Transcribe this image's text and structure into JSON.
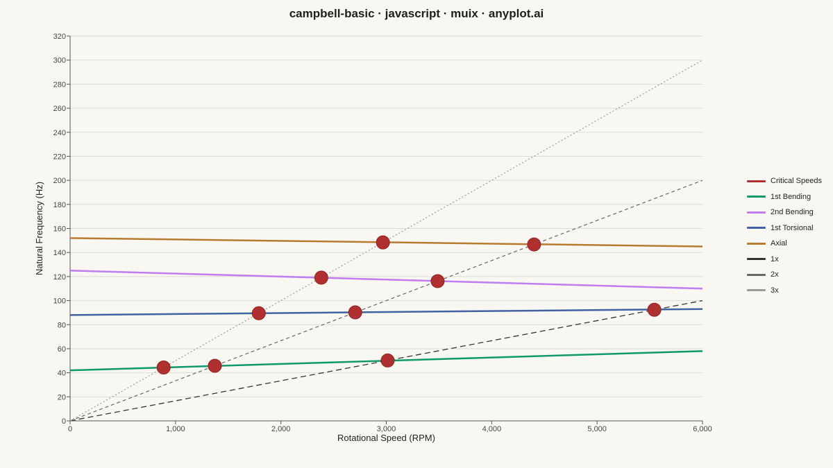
{
  "title": "campbell-basic · javascript · muix · anyplot.ai",
  "chart_data": {
    "type": "line",
    "xlabel": "Rotational Speed (RPM)",
    "ylabel": "Natural Frequency (Hz)",
    "xlim": [
      0,
      6000
    ],
    "ylim": [
      0,
      320
    ],
    "x_ticks": [
      0,
      1000,
      2000,
      3000,
      4000,
      5000,
      6000
    ],
    "x_tick_labels": [
      "0",
      "1,000",
      "2,000",
      "3,000",
      "4,000",
      "5,000",
      "6,000"
    ],
    "y_ticks": [
      0,
      20,
      40,
      60,
      80,
      100,
      120,
      140,
      160,
      180,
      200,
      220,
      240,
      260,
      280,
      300,
      320
    ],
    "y_tick_labels": [
      "0",
      "20",
      "40",
      "60",
      "80",
      "100",
      "120",
      "140",
      "160",
      "180",
      "200",
      "220",
      "240",
      "260",
      "280",
      "300",
      "320"
    ],
    "grid": "horizontal",
    "legend_position": "right",
    "series": [
      {
        "name": "1st Bending",
        "color": "#0e9a6c",
        "style": "solid",
        "x": [
          0,
          6000
        ],
        "y": [
          42,
          58
        ]
      },
      {
        "name": "2nd Bending",
        "color": "#c07cf0",
        "style": "solid",
        "x": [
          0,
          6000
        ],
        "y": [
          125,
          110
        ]
      },
      {
        "name": "1st Torsional",
        "color": "#3f62a3",
        "style": "solid",
        "x": [
          0,
          6000
        ],
        "y": [
          88,
          93
        ]
      },
      {
        "name": "Axial",
        "color": "#b77a2f",
        "style": "solid",
        "x": [
          0,
          6000
        ],
        "y": [
          152,
          145
        ]
      },
      {
        "name": "1x",
        "color": "#333333",
        "style": "dashed",
        "x": [
          0,
          6000
        ],
        "y": [
          0,
          100
        ]
      },
      {
        "name": "2x",
        "color": "#666666",
        "style": "longdash",
        "x": [
          0,
          6000
        ],
        "y": [
          0,
          200
        ]
      },
      {
        "name": "3x",
        "color": "#999999",
        "style": "dotted",
        "x": [
          0,
          6000
        ],
        "y": [
          0,
          300
        ]
      }
    ],
    "critical_speeds": {
      "name": "Critical Speeds",
      "color": "#b03030",
      "points": [
        {
          "x": 887,
          "y": 44.4
        },
        {
          "x": 1373,
          "y": 45.8
        },
        {
          "x": 1790,
          "y": 89.5
        },
        {
          "x": 2383,
          "y": 119.1
        },
        {
          "x": 2705,
          "y": 90.2
        },
        {
          "x": 2968,
          "y": 148.4
        },
        {
          "x": 3013,
          "y": 50.2
        },
        {
          "x": 3487,
          "y": 116.2
        },
        {
          "x": 4402,
          "y": 146.7
        },
        {
          "x": 5543,
          "y": 92.4
        }
      ]
    }
  },
  "legend": [
    {
      "label": "Critical Speeds",
      "color": "#b03030"
    },
    {
      "label": "1st Bending",
      "color": "#0e9a6c"
    },
    {
      "label": "2nd Bending",
      "color": "#c07cf0"
    },
    {
      "label": "1st Torsional",
      "color": "#3f62a3"
    },
    {
      "label": "Axial",
      "color": "#b77a2f"
    },
    {
      "label": "1x",
      "color": "#333333"
    },
    {
      "label": "2x",
      "color": "#666666"
    },
    {
      "label": "3x",
      "color": "#999999"
    }
  ]
}
